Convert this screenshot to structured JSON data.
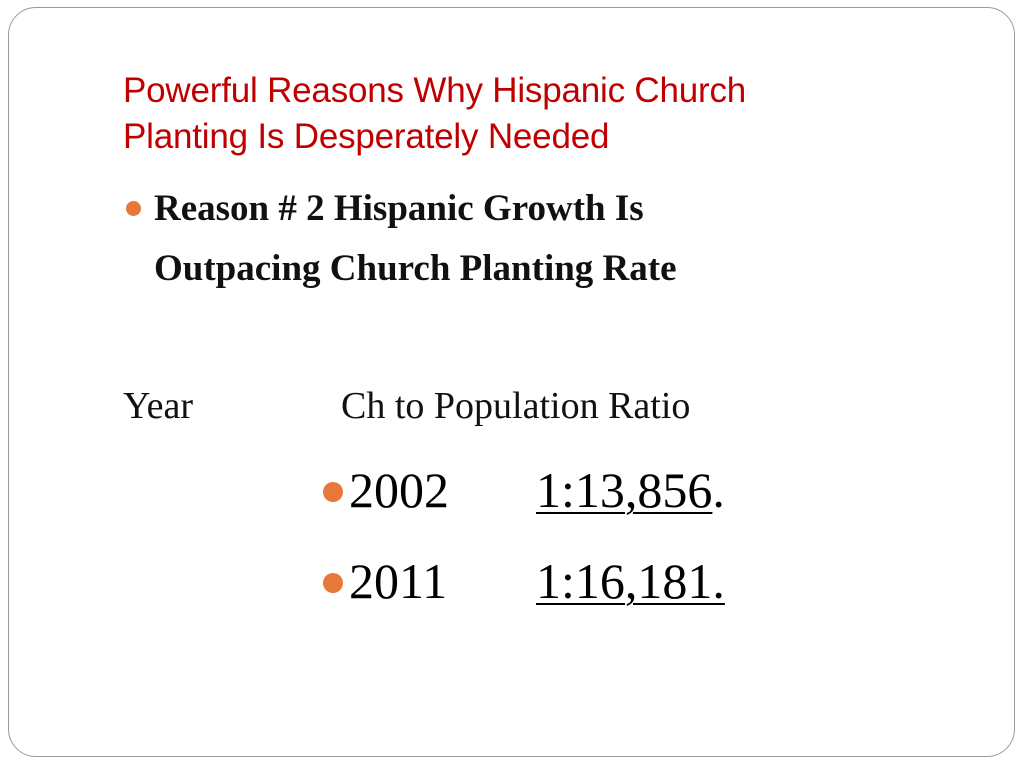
{
  "slide": {
    "title_line1": "Powerful Reasons Why Hispanic Church",
    "title_line2": "Planting Is Desperately Needed",
    "bullet_line1": "Reason # 2 Hispanic Growth Is",
    "bullet_line2": "Outpacing Church Planting Rate",
    "table_header": {
      "year": "Year",
      "ratio": "Ch to Population Ratio"
    },
    "rows": [
      {
        "year": "2002",
        "ratio": "1:13,856",
        "suffix": "."
      },
      {
        "year": "2011",
        "ratio": "1:16,181.",
        "suffix": ""
      }
    ]
  },
  "colors": {
    "title": "#c00000",
    "bullet": "#e8773a",
    "text": "#111111"
  }
}
